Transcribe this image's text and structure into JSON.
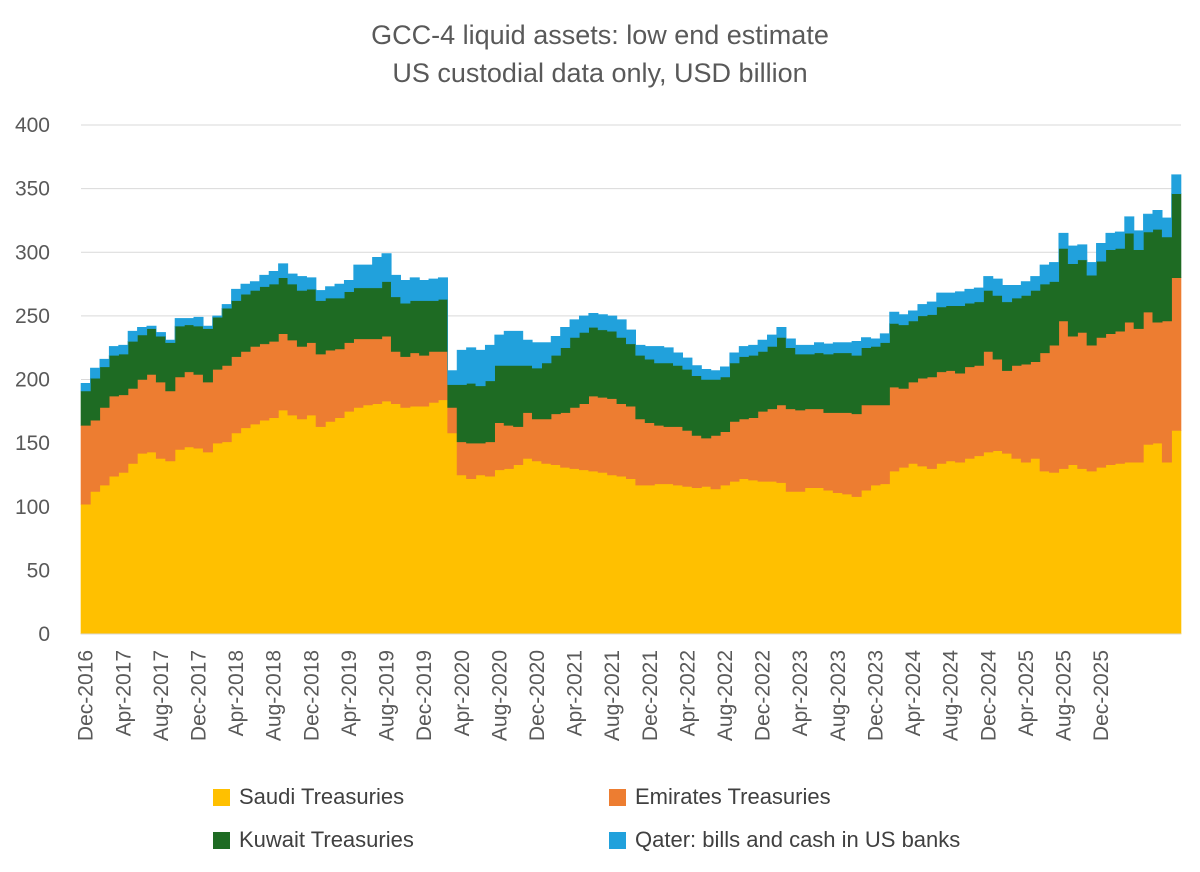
{
  "chart_data": {
    "type": "area",
    "stacked": true,
    "title": "GCC-4 liquid assets: low end estimate",
    "subtitle": "US custodial data only, USD billion",
    "xlabel": "",
    "ylabel": "",
    "ylim": [
      0,
      400
    ],
    "yticks": [
      "0",
      "50",
      "100",
      "150",
      "200",
      "250",
      "300",
      "350",
      "400"
    ],
    "grid": true,
    "legend_position": "bottom",
    "x_start": "Dec-2016",
    "x_tick_labels": [
      "Dec-2016",
      "Apr-2017",
      "Aug-2017",
      "Dec-2017",
      "Apr-2018",
      "Aug-2018",
      "Dec-2018",
      "Apr-2019",
      "Aug-2019",
      "Dec-2019",
      "Apr-2020",
      "Aug-2020",
      "Dec-2020",
      "Apr-2021",
      "Aug-2021",
      "Dec-2021",
      "Apr-2022",
      "Aug-2022",
      "Dec-2022",
      "Apr-2023",
      "Aug-2023",
      "Dec-2023",
      "Apr-2024",
      "Aug-2024",
      "Dec-2024",
      "Apr-2025",
      "Aug-2025",
      "Dec-2025"
    ],
    "series": [
      {
        "name": "Saudi Treasuries",
        "color": "#FFC000",
        "values": [
          102,
          112,
          117,
          124,
          127,
          134,
          142,
          143,
          138,
          136,
          145,
          147,
          146,
          143,
          150,
          151,
          158,
          162,
          165,
          168,
          170,
          176,
          172,
          169,
          172,
          163,
          167,
          170,
          175,
          178,
          180,
          181,
          183,
          181,
          178,
          179,
          179,
          182,
          184,
          158,
          125,
          122,
          125,
          124,
          129,
          130,
          133,
          138,
          136,
          134,
          133,
          131,
          130,
          129,
          128,
          127,
          125,
          124,
          122,
          117,
          117,
          118,
          118,
          117,
          116,
          115,
          116,
          114,
          117,
          120,
          122,
          121,
          120,
          120,
          119,
          112,
          112,
          115,
          115,
          113,
          111,
          110,
          108,
          113,
          117,
          118,
          128,
          131,
          134,
          132,
          130,
          134,
          136,
          135,
          138,
          140,
          143,
          144,
          142,
          138,
          135,
          138,
          128,
          127,
          130,
          133,
          130,
          128,
          131,
          133,
          134,
          135,
          135,
          149,
          150,
          135,
          160
        ]
      },
      {
        "name": "Emirates Treasuries",
        "color": "#ED7D31",
        "values": [
          62,
          56,
          61,
          63,
          61,
          59,
          58,
          61,
          60,
          55,
          57,
          59,
          58,
          55,
          58,
          60,
          60,
          60,
          61,
          60,
          60,
          60,
          59,
          57,
          57,
          57,
          56,
          54,
          54,
          54,
          52,
          51,
          51,
          41,
          40,
          42,
          40,
          40,
          38,
          20,
          26,
          28,
          25,
          27,
          37,
          34,
          30,
          36,
          33,
          35,
          40,
          43,
          48,
          52,
          59,
          59,
          60,
          57,
          57,
          52,
          49,
          46,
          45,
          46,
          44,
          41,
          38,
          42,
          42,
          47,
          47,
          49,
          55,
          57,
          61,
          65,
          64,
          62,
          62,
          61,
          63,
          64,
          65,
          67,
          63,
          62,
          66,
          62,
          64,
          69,
          72,
          72,
          71,
          70,
          72,
          71,
          79,
          72,
          65,
          73,
          77,
          76,
          93,
          100,
          116,
          101,
          107,
          99,
          102,
          103,
          104,
          110,
          105,
          104,
          95,
          111,
          120
        ]
      },
      {
        "name": "Kuwait Treasuries",
        "color": "#1E6B23",
        "values": [
          27,
          33,
          32,
          32,
          32,
          37,
          35,
          36,
          36,
          38,
          40,
          37,
          38,
          42,
          41,
          45,
          44,
          45,
          44,
          45,
          45,
          44,
          44,
          44,
          42,
          42,
          41,
          40,
          40,
          40,
          40,
          40,
          43,
          43,
          42,
          41,
          43,
          40,
          41,
          18,
          45,
          47,
          45,
          48,
          45,
          47,
          48,
          37,
          40,
          44,
          46,
          51,
          55,
          56,
          54,
          53,
          53,
          52,
          49,
          50,
          50,
          49,
          50,
          48,
          48,
          47,
          46,
          44,
          43,
          46,
          49,
          49,
          47,
          49,
          53,
          48,
          44,
          43,
          44,
          46,
          47,
          47,
          46,
          45,
          46,
          49,
          50,
          50,
          48,
          49,
          49,
          51,
          51,
          53,
          50,
          50,
          48,
          50,
          54,
          53,
          54,
          56,
          54,
          50,
          57,
          57,
          57,
          55,
          60,
          66,
          65,
          70,
          62,
          63,
          73,
          66,
          66
        ]
      },
      {
        "name": "Qater: bills and cash in US banks",
        "color": "#21A1DC",
        "values": [
          6,
          8,
          6,
          7,
          7,
          8,
          6,
          2,
          3,
          2,
          6,
          5,
          7,
          2,
          1,
          3,
          9,
          8,
          7,
          9,
          10,
          11,
          8,
          11,
          9,
          8,
          9,
          11,
          9,
          18,
          18,
          24,
          22,
          17,
          18,
          18,
          16,
          17,
          17,
          11,
          27,
          28,
          28,
          28,
          24,
          27,
          27,
          20,
          20,
          16,
          15,
          16,
          14,
          13,
          11,
          12,
          12,
          14,
          11,
          8,
          10,
          13,
          12,
          10,
          9,
          8,
          8,
          7,
          8,
          8,
          8,
          8,
          9,
          9,
          8,
          7,
          7,
          7,
          8,
          8,
          8,
          8,
          11,
          8,
          6,
          7,
          9,
          8,
          8,
          9,
          10,
          11,
          10,
          11,
          11,
          11,
          11,
          13,
          13,
          10,
          11,
          11,
          15,
          15,
          12,
          14,
          12,
          10,
          14,
          13,
          13,
          13,
          15,
          14,
          15,
          15,
          15
        ]
      }
    ]
  }
}
